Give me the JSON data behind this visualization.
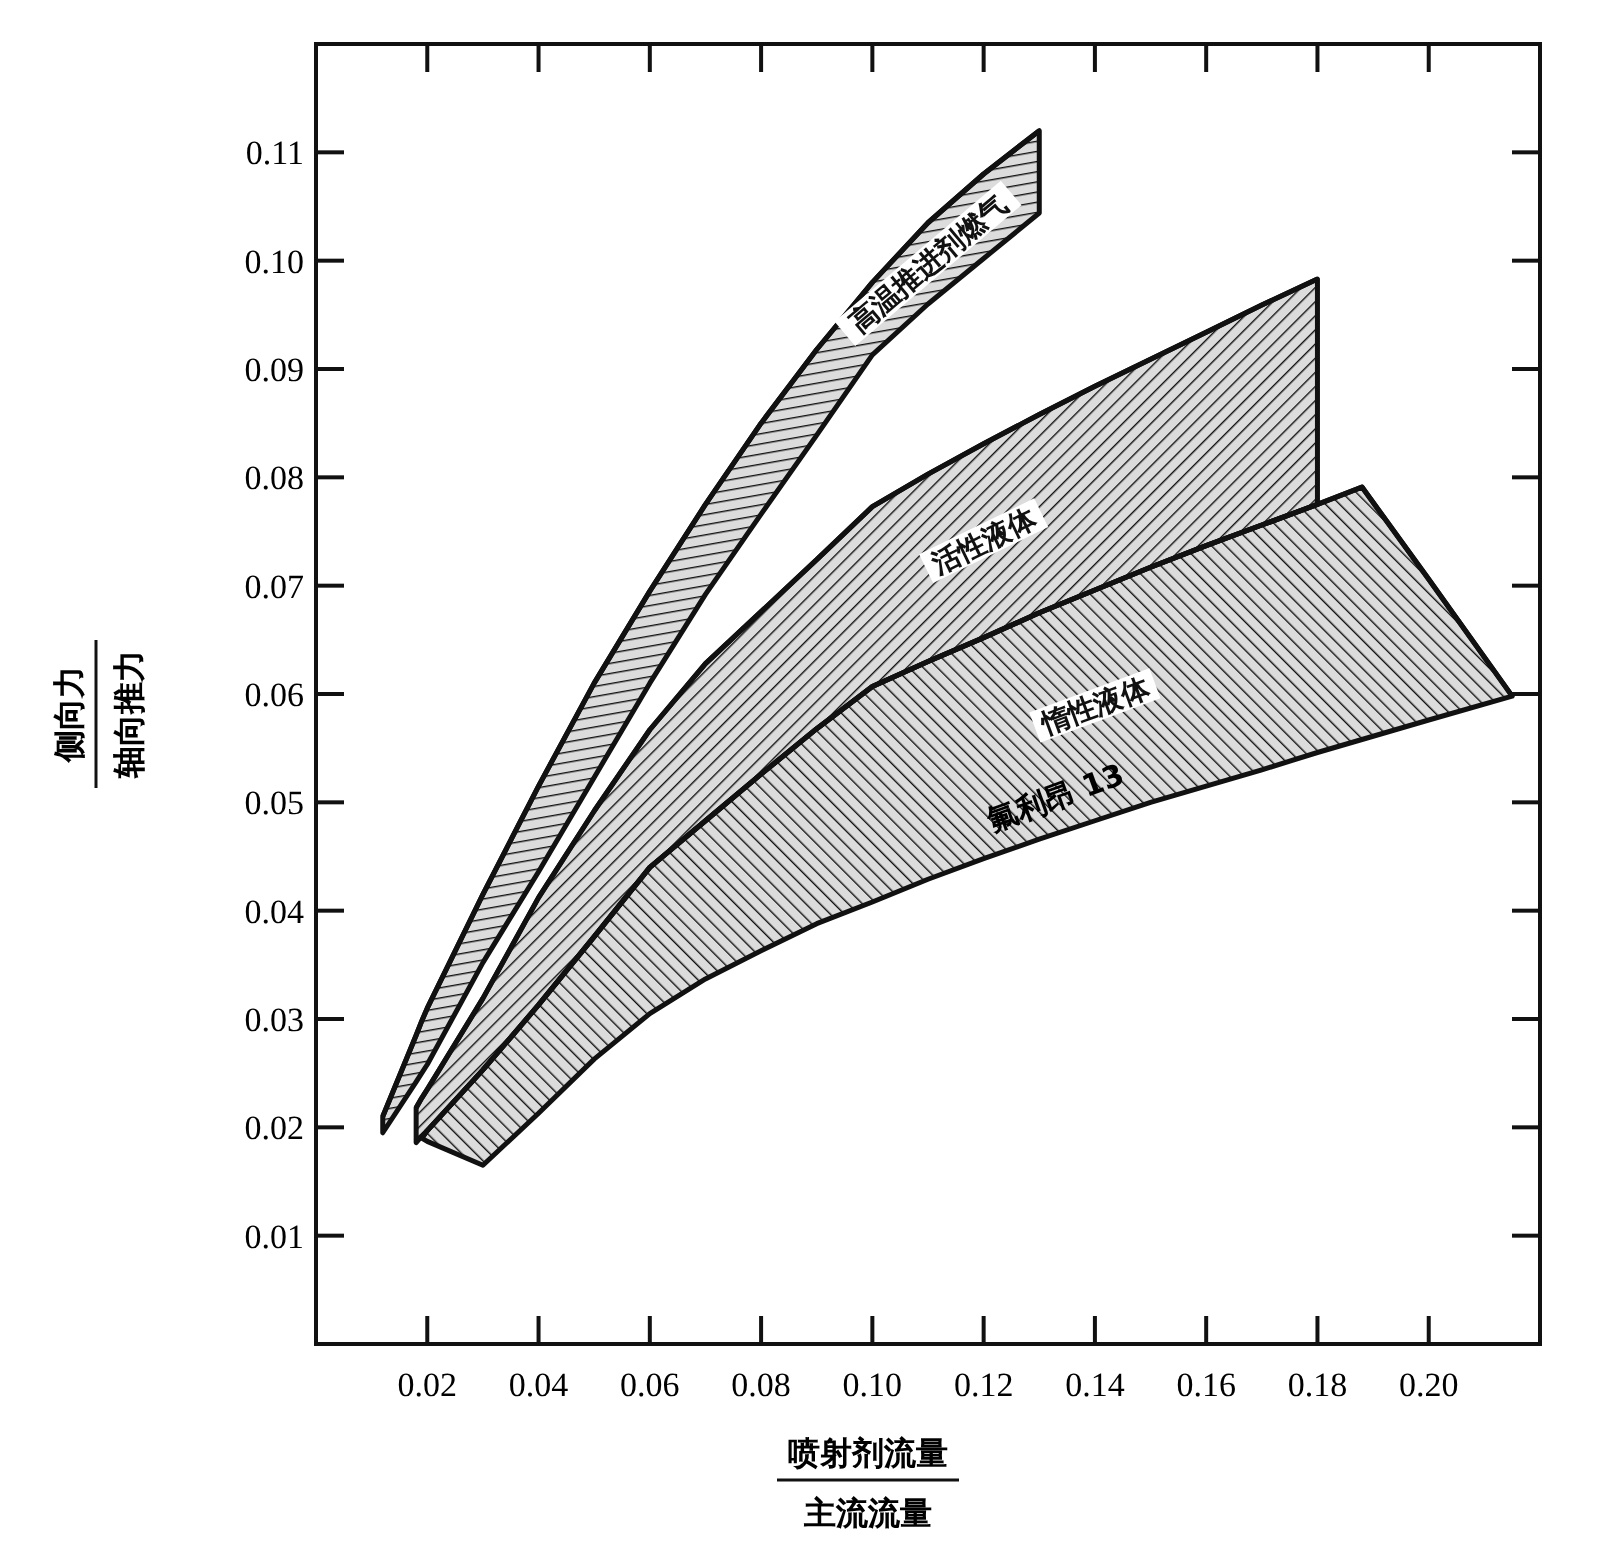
{
  "chart_data": {
    "type": "line",
    "xlabel": "喷射剂流量主流流量",
    "ylabel": "侧向力轴向推力",
    "xlim": [
      0,
      0.22
    ],
    "ylim": [
      0,
      0.12
    ],
    "xticks": [
      {
        "value": 0.02,
        "label": "0.02"
      },
      {
        "value": 0.04,
        "label": "0.04"
      },
      {
        "value": 0.06,
        "label": "0.06"
      },
      {
        "value": 0.08,
        "label": "0.08"
      },
      {
        "value": 0.1,
        "label": "0.10"
      },
      {
        "value": 0.12,
        "label": "0.12"
      },
      {
        "value": 0.14,
        "label": "0.14"
      },
      {
        "value": 0.16,
        "label": "0.16"
      },
      {
        "value": 0.18,
        "label": "0.18"
      },
      {
        "value": 0.2,
        "label": "0.20"
      }
    ],
    "yticks": [
      {
        "value": 0.01,
        "label": "0.01"
      },
      {
        "value": 0.02,
        "label": "0.02"
      },
      {
        "value": 0.03,
        "label": "0.03"
      },
      {
        "value": 0.04,
        "label": "0.04"
      },
      {
        "value": 0.05,
        "label": "0.05"
      },
      {
        "value": 0.06,
        "label": "0.06"
      },
      {
        "value": 0.07,
        "label": "0.07"
      },
      {
        "value": 0.08,
        "label": "0.08"
      },
      {
        "value": 0.09,
        "label": "0.09"
      },
      {
        "value": 0.1,
        "label": "0.10"
      },
      {
        "value": 0.11,
        "label": "0.11"
      }
    ],
    "x": [
      0.012,
      0.018,
      0.019,
      0.02,
      0.03,
      0.04,
      0.05,
      0.06,
      0.07,
      0.08,
      0.09,
      0.1,
      0.11,
      0.12,
      0.13,
      0.14,
      0.15,
      0.16,
      0.17,
      0.18,
      0.188,
      0.2,
      0.215
    ],
    "series": [
      {
        "name": "高温推进剂燃气",
        "color": "#111111",
        "values": [
          0.021,
          0.0285,
          0.0298,
          0.031,
          0.0415,
          0.0515,
          0.061,
          0.0695,
          0.0775,
          0.085,
          0.0918,
          0.098,
          0.1035,
          0.108,
          0.112,
          null,
          null,
          null,
          null,
          null,
          null,
          null,
          null
        ],
        "lower": [
          0.0195,
          0.0242,
          0.025,
          0.0258,
          0.0352,
          0.0436,
          0.0523,
          0.061,
          0.0692,
          0.0766,
          0.0839,
          0.0913,
          0.096,
          0.1002,
          0.1044,
          null,
          null,
          null,
          null,
          null,
          null,
          null,
          null
        ],
        "upper": [
          0.021,
          0.0285,
          0.0298,
          0.031,
          0.0415,
          0.0515,
          0.061,
          0.0695,
          0.0775,
          0.085,
          0.0918,
          0.098,
          0.1035,
          0.108,
          0.112,
          null,
          null,
          null,
          null,
          null,
          null,
          null,
          null
        ]
      },
      {
        "name": "活性液体",
        "color": "#111111",
        "values": [
          null,
          0.0218,
          0.0227,
          0.0235,
          0.0319,
          0.0412,
          0.0492,
          0.0567,
          0.0628,
          0.0676,
          0.0724,
          0.0773,
          0.0803,
          0.0831,
          0.0858,
          0.0884,
          0.0909,
          0.0934,
          0.0959,
          0.0983,
          null,
          null,
          null
        ],
        "lower": [
          null,
          0.0186,
          0.0192,
          0.0197,
          0.0253,
          0.0313,
          0.0376,
          0.044,
          0.0483,
          0.0526,
          0.0568,
          0.0607,
          0.063,
          0.0652,
          0.0675,
          0.0696,
          0.0717,
          0.0737,
          0.0756,
          0.0775,
          null,
          null,
          null
        ],
        "upper": [
          null,
          0.0218,
          0.0227,
          0.0235,
          0.0319,
          0.0412,
          0.0492,
          0.0567,
          0.0628,
          0.0676,
          0.0724,
          0.0773,
          0.0803,
          0.0831,
          0.0858,
          0.0884,
          0.0909,
          0.0934,
          0.0959,
          0.0983,
          null,
          null,
          null
        ]
      },
      {
        "name": "惰性液体",
        "color": "#111111",
        "values": [
          null,
          null,
          0.019,
          0.0197,
          0.0253,
          0.0313,
          0.0376,
          0.044,
          0.0483,
          0.0526,
          0.0568,
          0.0607,
          0.063,
          0.0652,
          0.0675,
          0.0696,
          0.0717,
          0.0737,
          0.0756,
          0.0775,
          0.0791,
          0.0706,
          0.0598
        ],
        "lower": [
          null,
          null,
          0.019,
          0.0187,
          0.0165,
          0.0213,
          0.0263,
          0.0305,
          0.0337,
          0.0363,
          0.0388,
          0.0408,
          0.0429,
          0.0448,
          0.0466,
          0.0483,
          0.05,
          0.0515,
          0.053,
          0.0546,
          0.0558,
          0.0576,
          0.0598
        ],
        "upper": [
          null,
          null,
          0.019,
          0.0197,
          0.0253,
          0.0313,
          0.0376,
          0.044,
          0.0483,
          0.0526,
          0.0568,
          0.0607,
          0.063,
          0.0652,
          0.0675,
          0.0696,
          0.0717,
          0.0737,
          0.0756,
          0.0775,
          0.0791,
          0.0706,
          0.0598
        ]
      }
    ],
    "annotations": [
      "氟利昂 13"
    ]
  }
}
